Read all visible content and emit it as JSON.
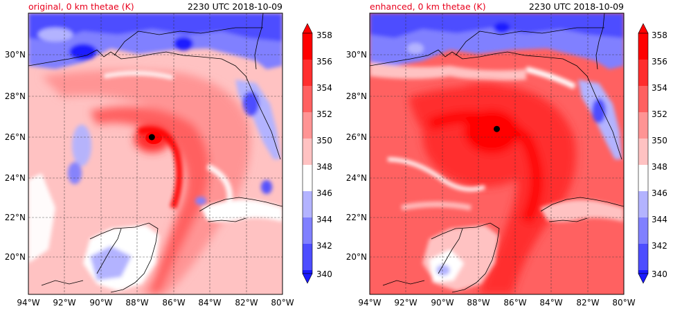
{
  "colors": {
    "c340": "#1a1aff",
    "c342": "#4d4dff",
    "c344": "#8080ff",
    "c346": "#b3b3ff",
    "c348": "#ffffff",
    "c350": "#ffc2c2",
    "c352": "#ff9494",
    "c354": "#ff6161",
    "c356": "#ff2e2e",
    "c358": "#ff0000"
  },
  "panels": [
    {
      "title": "original, 0 km thetae (K)",
      "time": "2230 UTC 2018-10-09",
      "center_marker": {
        "lon": -87.2,
        "lat": 26.0
      },
      "lon_ticks": [
        "94°W",
        "92°W",
        "90°W",
        "88°W",
        "86°W",
        "84°W",
        "82°W",
        "80°W"
      ],
      "lat_ticks": [
        "20°N",
        "22°N",
        "24°N",
        "26°N",
        "28°N",
        "30°N"
      ]
    },
    {
      "title": "enhanced, 0 km thetae (K)",
      "time": "2230 UTC 2018-10-09",
      "center_marker": {
        "lon": -87.0,
        "lat": 26.4
      },
      "lon_ticks": [
        "94°W",
        "92°W",
        "90°W",
        "88°W",
        "86°W",
        "84°W",
        "82°W",
        "80°W"
      ],
      "lat_ticks": [
        "20°N",
        "22°N",
        "24°N",
        "26°N",
        "28°N",
        "30°N"
      ]
    }
  ],
  "colorbar": {
    "labels": [
      "358",
      "356",
      "354",
      "352",
      "350",
      "348",
      "346",
      "344",
      "342",
      "340"
    ]
  }
}
